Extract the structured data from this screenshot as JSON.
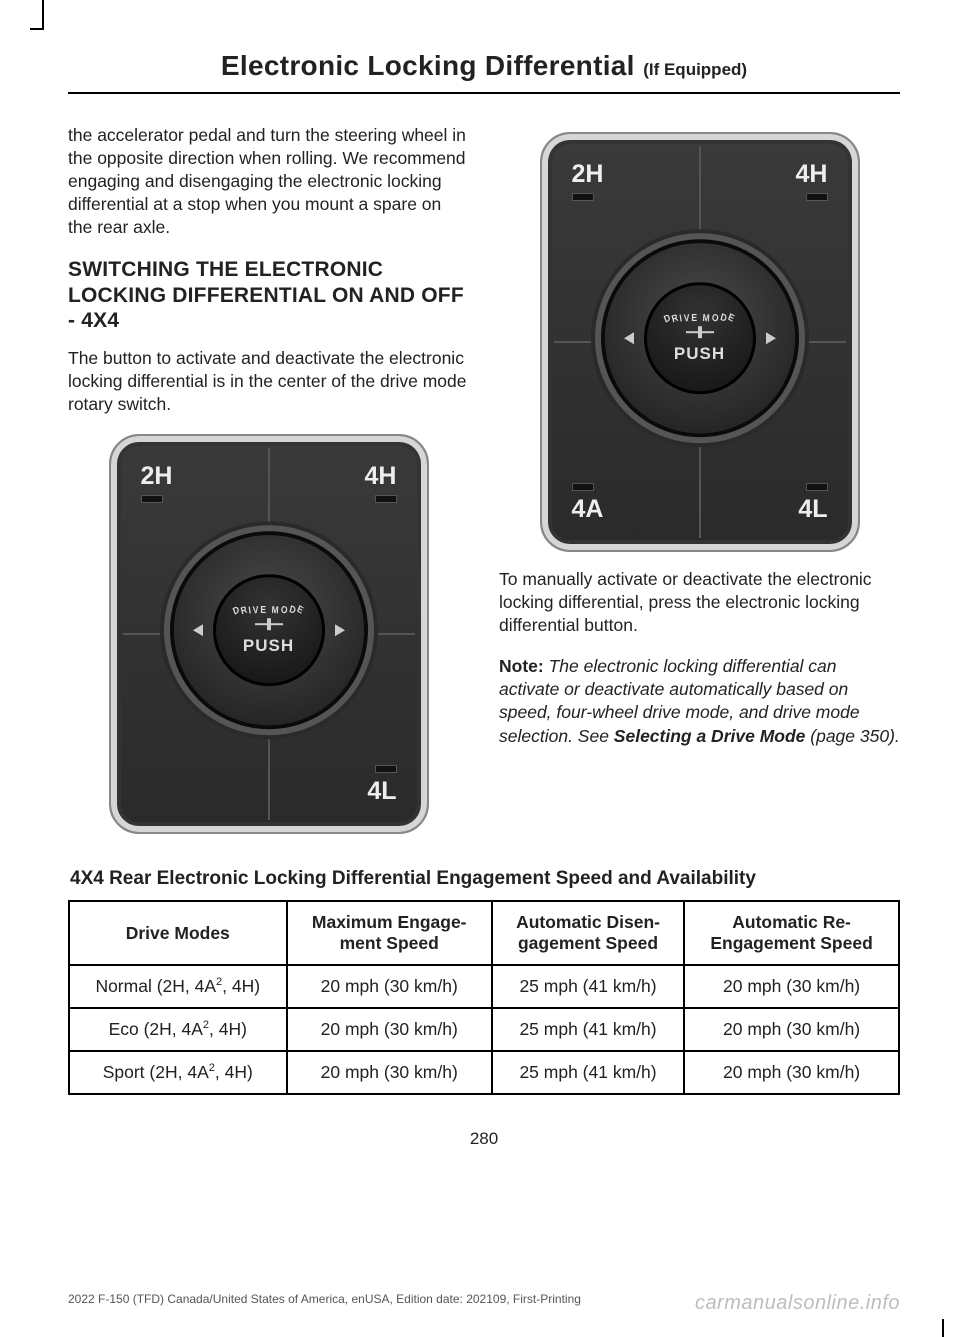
{
  "header": {
    "title": "Electronic Locking Differential",
    "subtitle": "(If Equipped)"
  },
  "left": {
    "intro": "the accelerator pedal and turn the steering wheel in the opposite direction when rolling. We recommend engaging and disengaging the electronic locking differential at a stop when you mount a spare on the rear axle.",
    "sec_title": "SWITCHING THE ELECTRONIC LOCKING DIFFERENTIAL ON AND OFF - 4X4",
    "sec_body": "The button to activate and deactivate the electronic locking differential is in the center of the drive mode rotary switch."
  },
  "right": {
    "body1": "To manually activate or deactivate the electronic locking differential, press the electronic locking differential button.",
    "note_label": "Note:",
    "note_body": " The electronic locking differential can activate or deactivate automatically based on speed, four-wheel drive mode, and drive mode selection. See ",
    "note_ref": "Selecting a Drive Mode",
    "note_tail": " (page 350)."
  },
  "dial": {
    "q2h": "2H",
    "q4h": "4H",
    "q4a": "4A",
    "q4l": "4L",
    "drive_mode": "DRIVE MODE",
    "push": "PUSH"
  },
  "table": {
    "title": "4X4 Rear Electronic Locking Differential Engagement Speed and Availability",
    "columns": [
      "Drive Modes",
      "Maximum Engagement Speed",
      "Automatic Disengagement Speed",
      "Automatic Re-Engagement Speed"
    ],
    "col_headers_split": [
      [
        "Drive Modes"
      ],
      [
        "Maximum Engage-",
        "ment Speed"
      ],
      [
        "Automatic Disen-",
        "gagement Speed"
      ],
      [
        "Automatic Re-",
        "Engagement Speed"
      ]
    ],
    "rows": [
      {
        "mode_pre": "Normal (2H, 4A",
        "sup": "2",
        "mode_post": ", 4H)",
        "max": "20 mph (30 km/h)",
        "dis": "25 mph (41 km/h)",
        "re": "20 mph (30 km/h)"
      },
      {
        "mode_pre": "Eco (2H, 4A",
        "sup": "2",
        "mode_post": ", 4H)",
        "max": "20 mph (30 km/h)",
        "dis": "25 mph (41 km/h)",
        "re": "20 mph (30 km/h)"
      },
      {
        "mode_pre": "Sport (2H, 4A",
        "sup": "2",
        "mode_post": ", 4H)",
        "max": "20 mph (30 km/h)",
        "dis": "25 mph (41 km/h)",
        "re": "20 mph (30 km/h)"
      }
    ]
  },
  "page_number": "280",
  "footer_left": "2022 F-150 (TFD) Canada/United States of America, enUSA, Edition date: 202109, First-Printing",
  "watermark": "carmanualsonline.info"
}
